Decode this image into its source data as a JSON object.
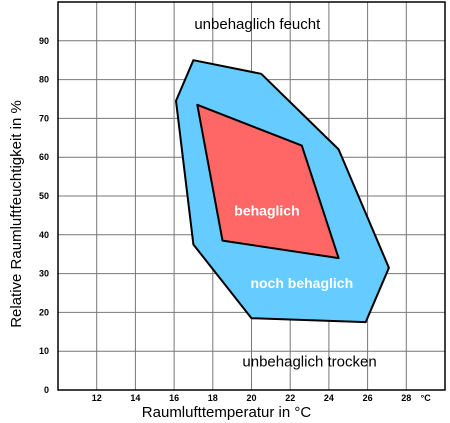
{
  "chart_data": {
    "type": "area",
    "xlabel": "Raumlufttemperatur in °C",
    "ylabel": "Relative Raumluftfeuchtigkeit in %",
    "x_unit": "°C",
    "xlim": [
      10,
      30
    ],
    "ylim": [
      0,
      100
    ],
    "x_ticks": [
      12,
      14,
      16,
      18,
      20,
      22,
      24,
      26,
      28
    ],
    "y_ticks": [
      0,
      10,
      20,
      30,
      40,
      50,
      60,
      70,
      80,
      90
    ],
    "grid": true,
    "zones": [
      {
        "name": "noch behaglich",
        "color": "#66ccff",
        "points": [
          [
            17,
            85
          ],
          [
            20.5,
            81.5
          ],
          [
            24.5,
            62
          ],
          [
            27.1,
            31.5
          ],
          [
            25.9,
            17.5
          ],
          [
            20,
            18.5
          ],
          [
            17,
            37.5
          ],
          [
            16.1,
            74.5
          ]
        ]
      },
      {
        "name": "behaglich",
        "color": "#ff6666",
        "points": [
          [
            17.2,
            73.5
          ],
          [
            22.6,
            63
          ],
          [
            24.5,
            34
          ],
          [
            18.5,
            38.5
          ]
        ]
      }
    ],
    "annotations": [
      {
        "text": "unbehaglich feucht",
        "x": 20.3,
        "y": 93
      },
      {
        "text": "behaglich",
        "x": 20.8,
        "y": 45
      },
      {
        "text": "noch behaglich",
        "x": 22.6,
        "y": 26.3
      },
      {
        "text": "unbehaglich trocken",
        "x": 23,
        "y": 6
      }
    ]
  }
}
